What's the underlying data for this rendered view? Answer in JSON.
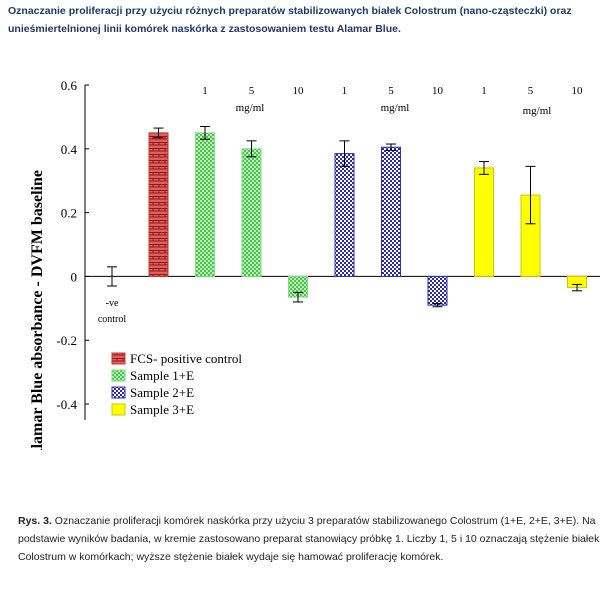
{
  "title": "Oznaczanie proliferacji przy użyciu różnych preparatów stabilizowanych białek Colostrum (nano-cząsteczki) oraz unieśmiertelnionej linii komórek naskórka z zastosowaniem testu Alamar Blue.",
  "caption": {
    "label": "Rys. 3.",
    "text": "Oznaczanie proliferacji komórek naskórka przy użyciu 3 preparatów stabilizowanego Colostrum (1+E, 2+E, 3+E). Na podstawie wyników badania, w kremie zastosowano preparat stanowiący próbkę 1. Liczby 1, 5 i 10 oznaczają stężenie białek Colostrum w komórkach; wyższe stężenie białek wydaje się hamować proliferację komórek."
  },
  "chart_data": {
    "type": "bar",
    "ylabel": "Alamar Blue absorbance - DVFM baseline",
    "ylim": [
      -0.45,
      0.6
    ],
    "yticks": [
      {
        "v": 0.6,
        "label": "0.6"
      },
      {
        "v": 0.4,
        "label": "0.4"
      },
      {
        "v": 0.2,
        "label": "0.2"
      },
      {
        "v": 0,
        "label": "0"
      },
      {
        "v": -0.2,
        "label": "-0.2"
      },
      {
        "v": -0.4,
        "label": "-0.4"
      }
    ],
    "unit_label": "mg/ml",
    "negative_control_label": [
      "-ve",
      "control"
    ],
    "categories": [
      "-ve control",
      "FCS",
      "1+E 1",
      "1+E 5",
      "1+E 10",
      "2+E 1",
      "2+E 5",
      "2+E 10",
      "3+E 1",
      "3+E 5",
      "3+E 10"
    ],
    "concentration_labels": [
      "",
      "",
      "1",
      "5",
      "10",
      "1",
      "5",
      "10",
      "1",
      "5",
      "10"
    ],
    "bars": [
      {
        "series": "control",
        "value": 0.0,
        "err": 0.03
      },
      {
        "series": "FCS- positive control",
        "value": 0.45,
        "err": 0.015
      },
      {
        "series": "Sample 1+E",
        "value": 0.45,
        "err": 0.02
      },
      {
        "series": "Sample 1+E",
        "value": 0.4,
        "err": 0.025
      },
      {
        "series": "Sample 1+E",
        "value": -0.065,
        "err": 0.015
      },
      {
        "series": "Sample 2+E",
        "value": 0.385,
        "err": 0.04
      },
      {
        "series": "Sample 2+E",
        "value": 0.405,
        "err": 0.01
      },
      {
        "series": "Sample 2+E",
        "value": -0.09,
        "err": 0.005
      },
      {
        "series": "Sample 3+E",
        "value": 0.34,
        "err": 0.02
      },
      {
        "series": "Sample 3+E",
        "value": 0.255,
        "err": 0.09
      },
      {
        "series": "Sample 3+E",
        "value": -0.035,
        "err": 0.01
      }
    ],
    "series": [
      {
        "name": "FCS- positive control",
        "color": "#c0392b",
        "pattern": "brick"
      },
      {
        "name": "Sample 1+E",
        "color": "#7ee07e",
        "pattern": "check-green"
      },
      {
        "name": "Sample 2+E",
        "color": "#2f2fb0",
        "pattern": "check-blue"
      },
      {
        "name": "Sample 3+E",
        "color": "#ffff00",
        "pattern": "solid"
      }
    ]
  }
}
